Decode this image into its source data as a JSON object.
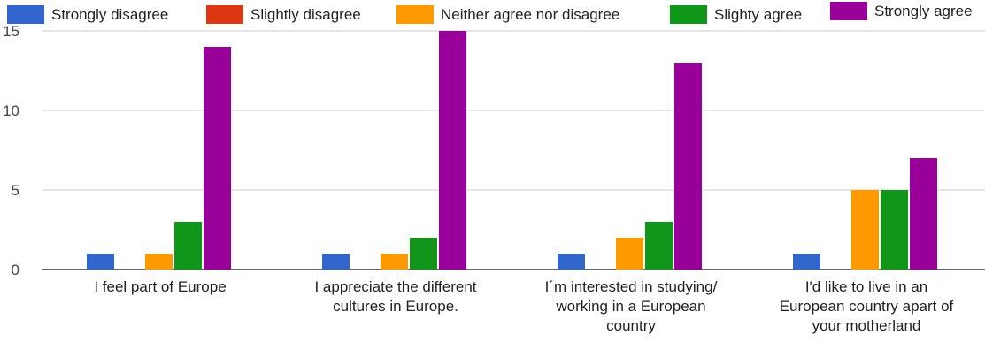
{
  "chart_data": {
    "type": "bar",
    "title": "",
    "xlabel": "",
    "ylabel": "",
    "ylim": [
      0,
      15
    ],
    "yticks": [
      0,
      5,
      10,
      15
    ],
    "grid": true,
    "legend_position": "top",
    "categories": [
      "I feel part of Europe",
      "I appreciate the different cultures in Europe.",
      "I´m interested in studying/ working in a European country",
      "I'd like to live in an European country apart of your motherland"
    ],
    "category_lines": [
      [
        "I feel part of Europe"
      ],
      [
        "I appreciate the different",
        "cultures in Europe."
      ],
      [
        "I´m interested in studying/",
        "working in a European",
        "country"
      ],
      [
        "I'd like to live in an",
        "European country apart of",
        "your motherland"
      ]
    ],
    "series": [
      {
        "name": "Strongly disagree",
        "color": "#3366cc",
        "values": [
          1,
          1,
          1,
          1
        ]
      },
      {
        "name": "Slightly disagree",
        "color": "#dc3912",
        "values": [
          0,
          0,
          0,
          0
        ]
      },
      {
        "name": "Neither agree nor disagree",
        "color": "#ff9900",
        "values": [
          1,
          1,
          2,
          5
        ]
      },
      {
        "name": "Slighty agree",
        "color": "#109618",
        "values": [
          3,
          2,
          3,
          5
        ]
      },
      {
        "name": "Strongly agree",
        "color": "#990099",
        "values": [
          14,
          15,
          13,
          7
        ]
      }
    ]
  }
}
